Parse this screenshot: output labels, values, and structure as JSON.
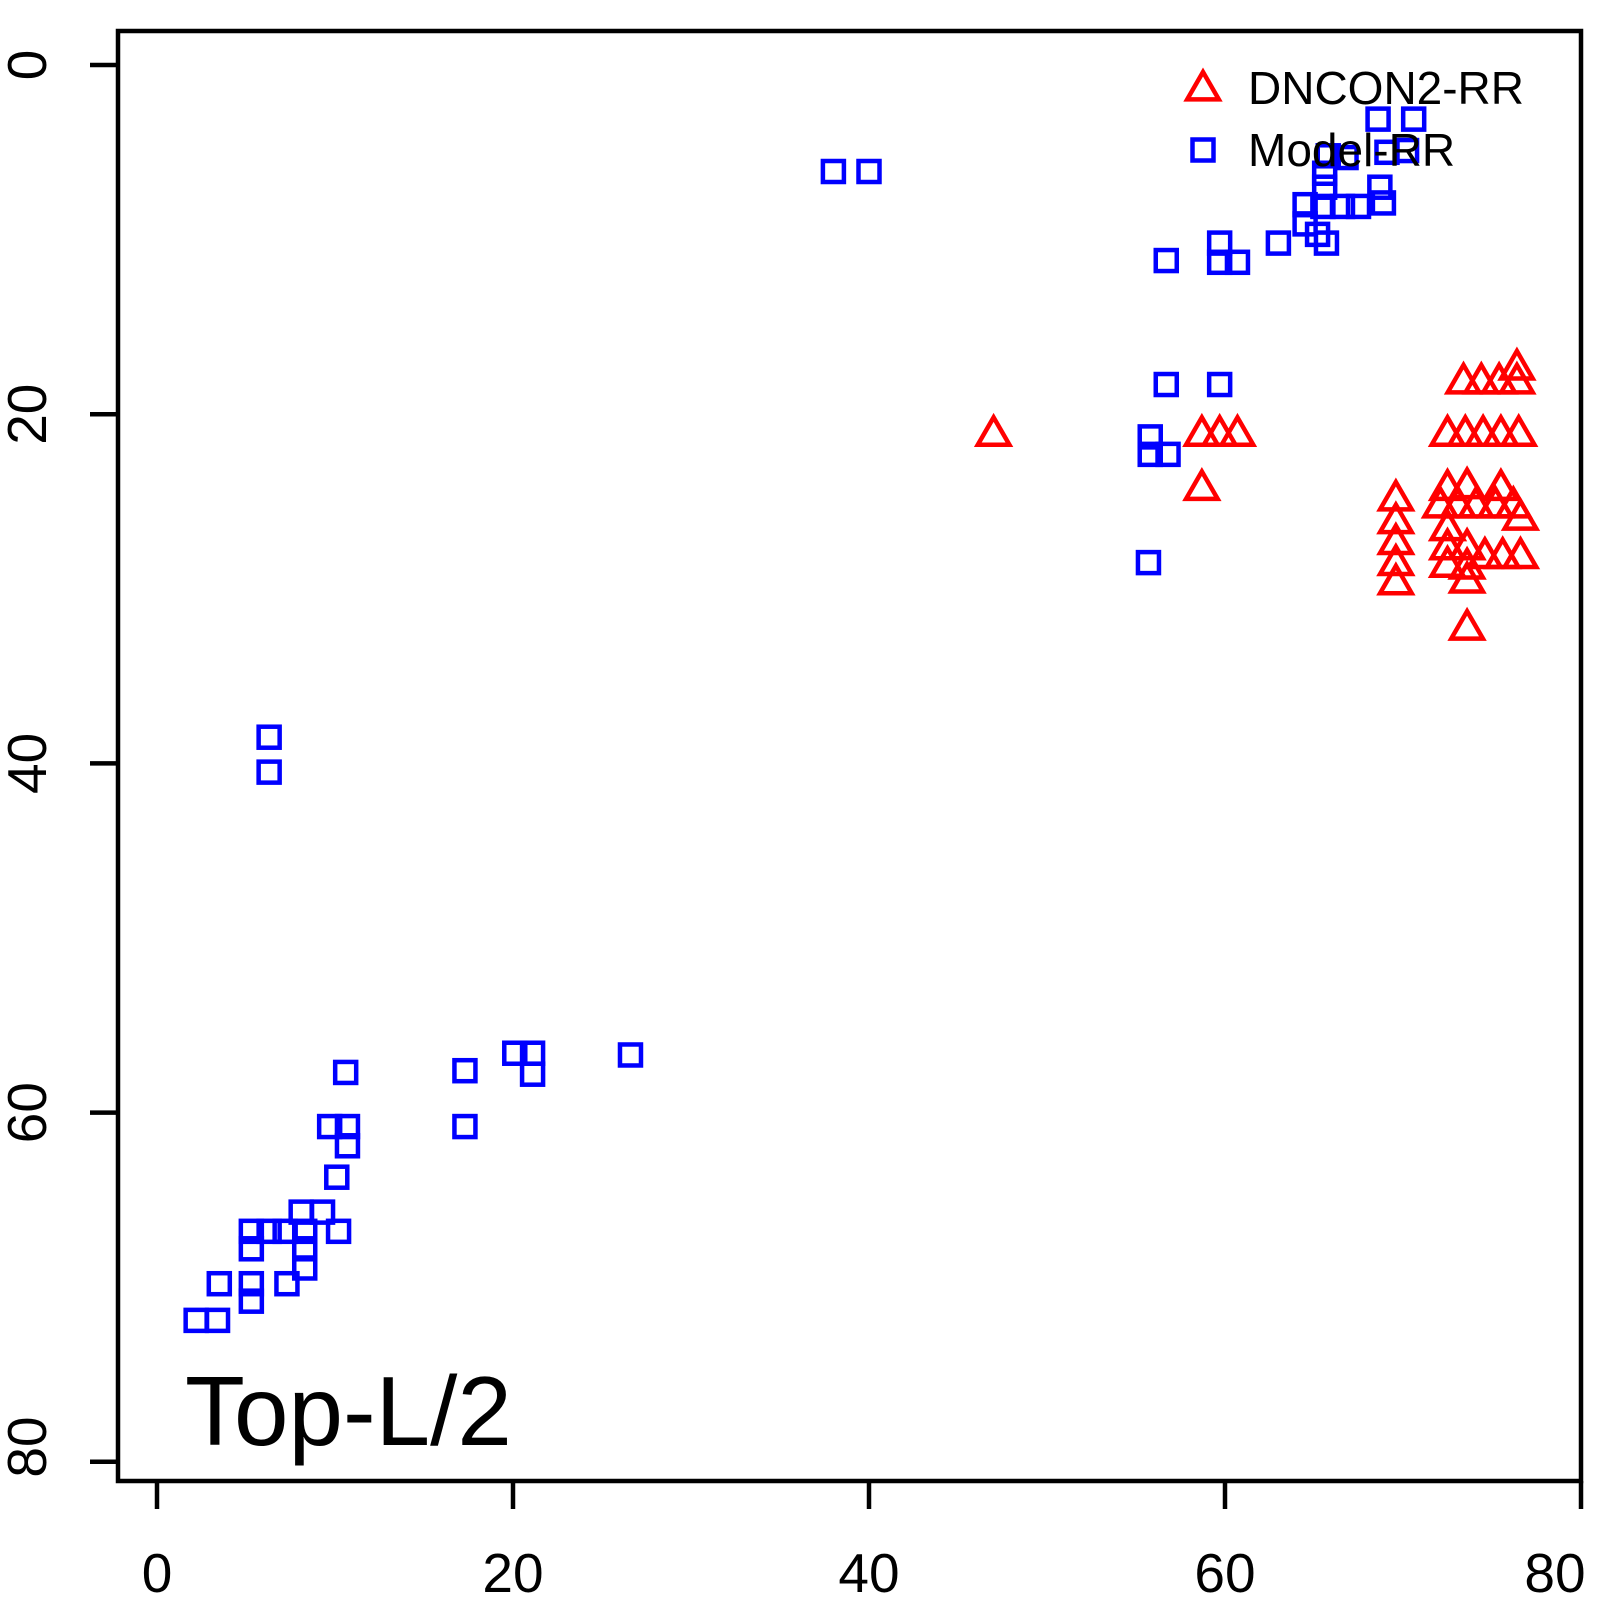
{
  "page": {
    "background": "#ffffff"
  },
  "chart_data": {
    "type": "scatter",
    "title": "Top-L/2",
    "xlabel": "",
    "ylabel": "",
    "xlim": [
      0,
      80
    ],
    "ylim": [
      0,
      80
    ],
    "y_axis_reversed": true,
    "grid": false,
    "x_ticks": [
      0,
      20,
      40,
      60,
      80
    ],
    "y_ticks": [
      0,
      20,
      40,
      60,
      80
    ],
    "legend_position": "top-right",
    "colors": {
      "dncon2": "#ff0000",
      "model": "#0000ff",
      "axis": "#000000"
    },
    "legend": [
      {
        "label": "DNCON2-RR",
        "marker": "triangle",
        "color": "#ff0000"
      },
      {
        "label": "Model-RR",
        "marker": "square",
        "color": "#0000ff"
      }
    ],
    "series": [
      {
        "name": "DNCON2-RR",
        "marker": "triangle",
        "color": "#ff0000",
        "points": [
          [
            47.0,
            21.1
          ],
          [
            58.7,
            21.1
          ],
          [
            59.7,
            21.1
          ],
          [
            60.7,
            21.1
          ],
          [
            58.7,
            24.2
          ],
          [
            73.4,
            18.1
          ],
          [
            74.4,
            18.1
          ],
          [
            75.4,
            18.1
          ],
          [
            76.4,
            18.1
          ],
          [
            76.4,
            17.3
          ],
          [
            72.5,
            21.1
          ],
          [
            73.5,
            21.1
          ],
          [
            74.5,
            21.1
          ],
          [
            75.5,
            21.1
          ],
          [
            76.5,
            21.1
          ],
          [
            69.6,
            24.8
          ],
          [
            69.6,
            26.1
          ],
          [
            69.6,
            27.3
          ],
          [
            69.6,
            28.5
          ],
          [
            69.6,
            29.6
          ],
          [
            72.5,
            24.2
          ],
          [
            73.6,
            24.1
          ],
          [
            75.5,
            24.2
          ],
          [
            72.1,
            25.2
          ],
          [
            73.1,
            25.2
          ],
          [
            74.1,
            25.2
          ],
          [
            75.2,
            25.2
          ],
          [
            76.2,
            25.2
          ],
          [
            76.6,
            25.9
          ],
          [
            72.5,
            26.5
          ],
          [
            72.5,
            27.6
          ],
          [
            73.6,
            27.6
          ],
          [
            74.6,
            28.1
          ],
          [
            75.6,
            28.1
          ],
          [
            76.6,
            28.1
          ],
          [
            72.5,
            28.6
          ],
          [
            73.6,
            28.7
          ],
          [
            73.6,
            29.5
          ],
          [
            73.6,
            32.2
          ]
        ]
      },
      {
        "name": "Model-RR",
        "marker": "square",
        "color": "#0000ff",
        "points": [
          [
            38.0,
            6.1
          ],
          [
            40.0,
            6.1
          ],
          [
            68.6,
            3.1
          ],
          [
            70.6,
            3.1
          ],
          [
            65.8,
            5.2
          ],
          [
            66.8,
            5.3
          ],
          [
            69.1,
            5.0
          ],
          [
            70.2,
            4.9
          ],
          [
            65.6,
            6.2
          ],
          [
            65.6,
            7.0
          ],
          [
            68.7,
            7.0
          ],
          [
            68.9,
            7.9
          ],
          [
            64.5,
            8.0
          ],
          [
            65.5,
            8.1
          ],
          [
            66.6,
            8.1
          ],
          [
            67.5,
            8.1
          ],
          [
            64.5,
            9.1
          ],
          [
            65.2,
            9.7
          ],
          [
            65.7,
            10.2
          ],
          [
            63.0,
            10.2
          ],
          [
            59.7,
            10.2
          ],
          [
            59.7,
            11.3
          ],
          [
            60.7,
            11.3
          ],
          [
            56.7,
            11.2
          ],
          [
            56.7,
            18.3
          ],
          [
            59.7,
            18.3
          ],
          [
            55.8,
            21.3
          ],
          [
            55.8,
            22.3
          ],
          [
            56.8,
            22.3
          ],
          [
            55.7,
            28.5
          ],
          [
            6.3,
            38.5
          ],
          [
            6.3,
            40.5
          ],
          [
            10.6,
            57.7
          ],
          [
            17.3,
            57.6
          ],
          [
            20.1,
            56.6
          ],
          [
            21.1,
            56.6
          ],
          [
            21.1,
            57.8
          ],
          [
            26.6,
            56.7
          ],
          [
            9.7,
            60.8
          ],
          [
            10.7,
            60.8
          ],
          [
            10.7,
            61.9
          ],
          [
            17.3,
            60.8
          ],
          [
            10.1,
            63.7
          ],
          [
            8.1,
            65.7
          ],
          [
            9.3,
            65.7
          ],
          [
            5.3,
            66.8
          ],
          [
            6.3,
            66.8
          ],
          [
            7.2,
            66.8
          ],
          [
            8.3,
            66.8
          ],
          [
            10.2,
            66.8
          ],
          [
            5.3,
            67.8
          ],
          [
            8.3,
            67.8
          ],
          [
            8.3,
            68.9
          ],
          [
            3.5,
            69.8
          ],
          [
            5.3,
            69.8
          ],
          [
            7.3,
            69.8
          ],
          [
            5.3,
            70.8
          ],
          [
            2.2,
            71.9
          ],
          [
            3.4,
            71.9
          ]
        ]
      }
    ]
  }
}
